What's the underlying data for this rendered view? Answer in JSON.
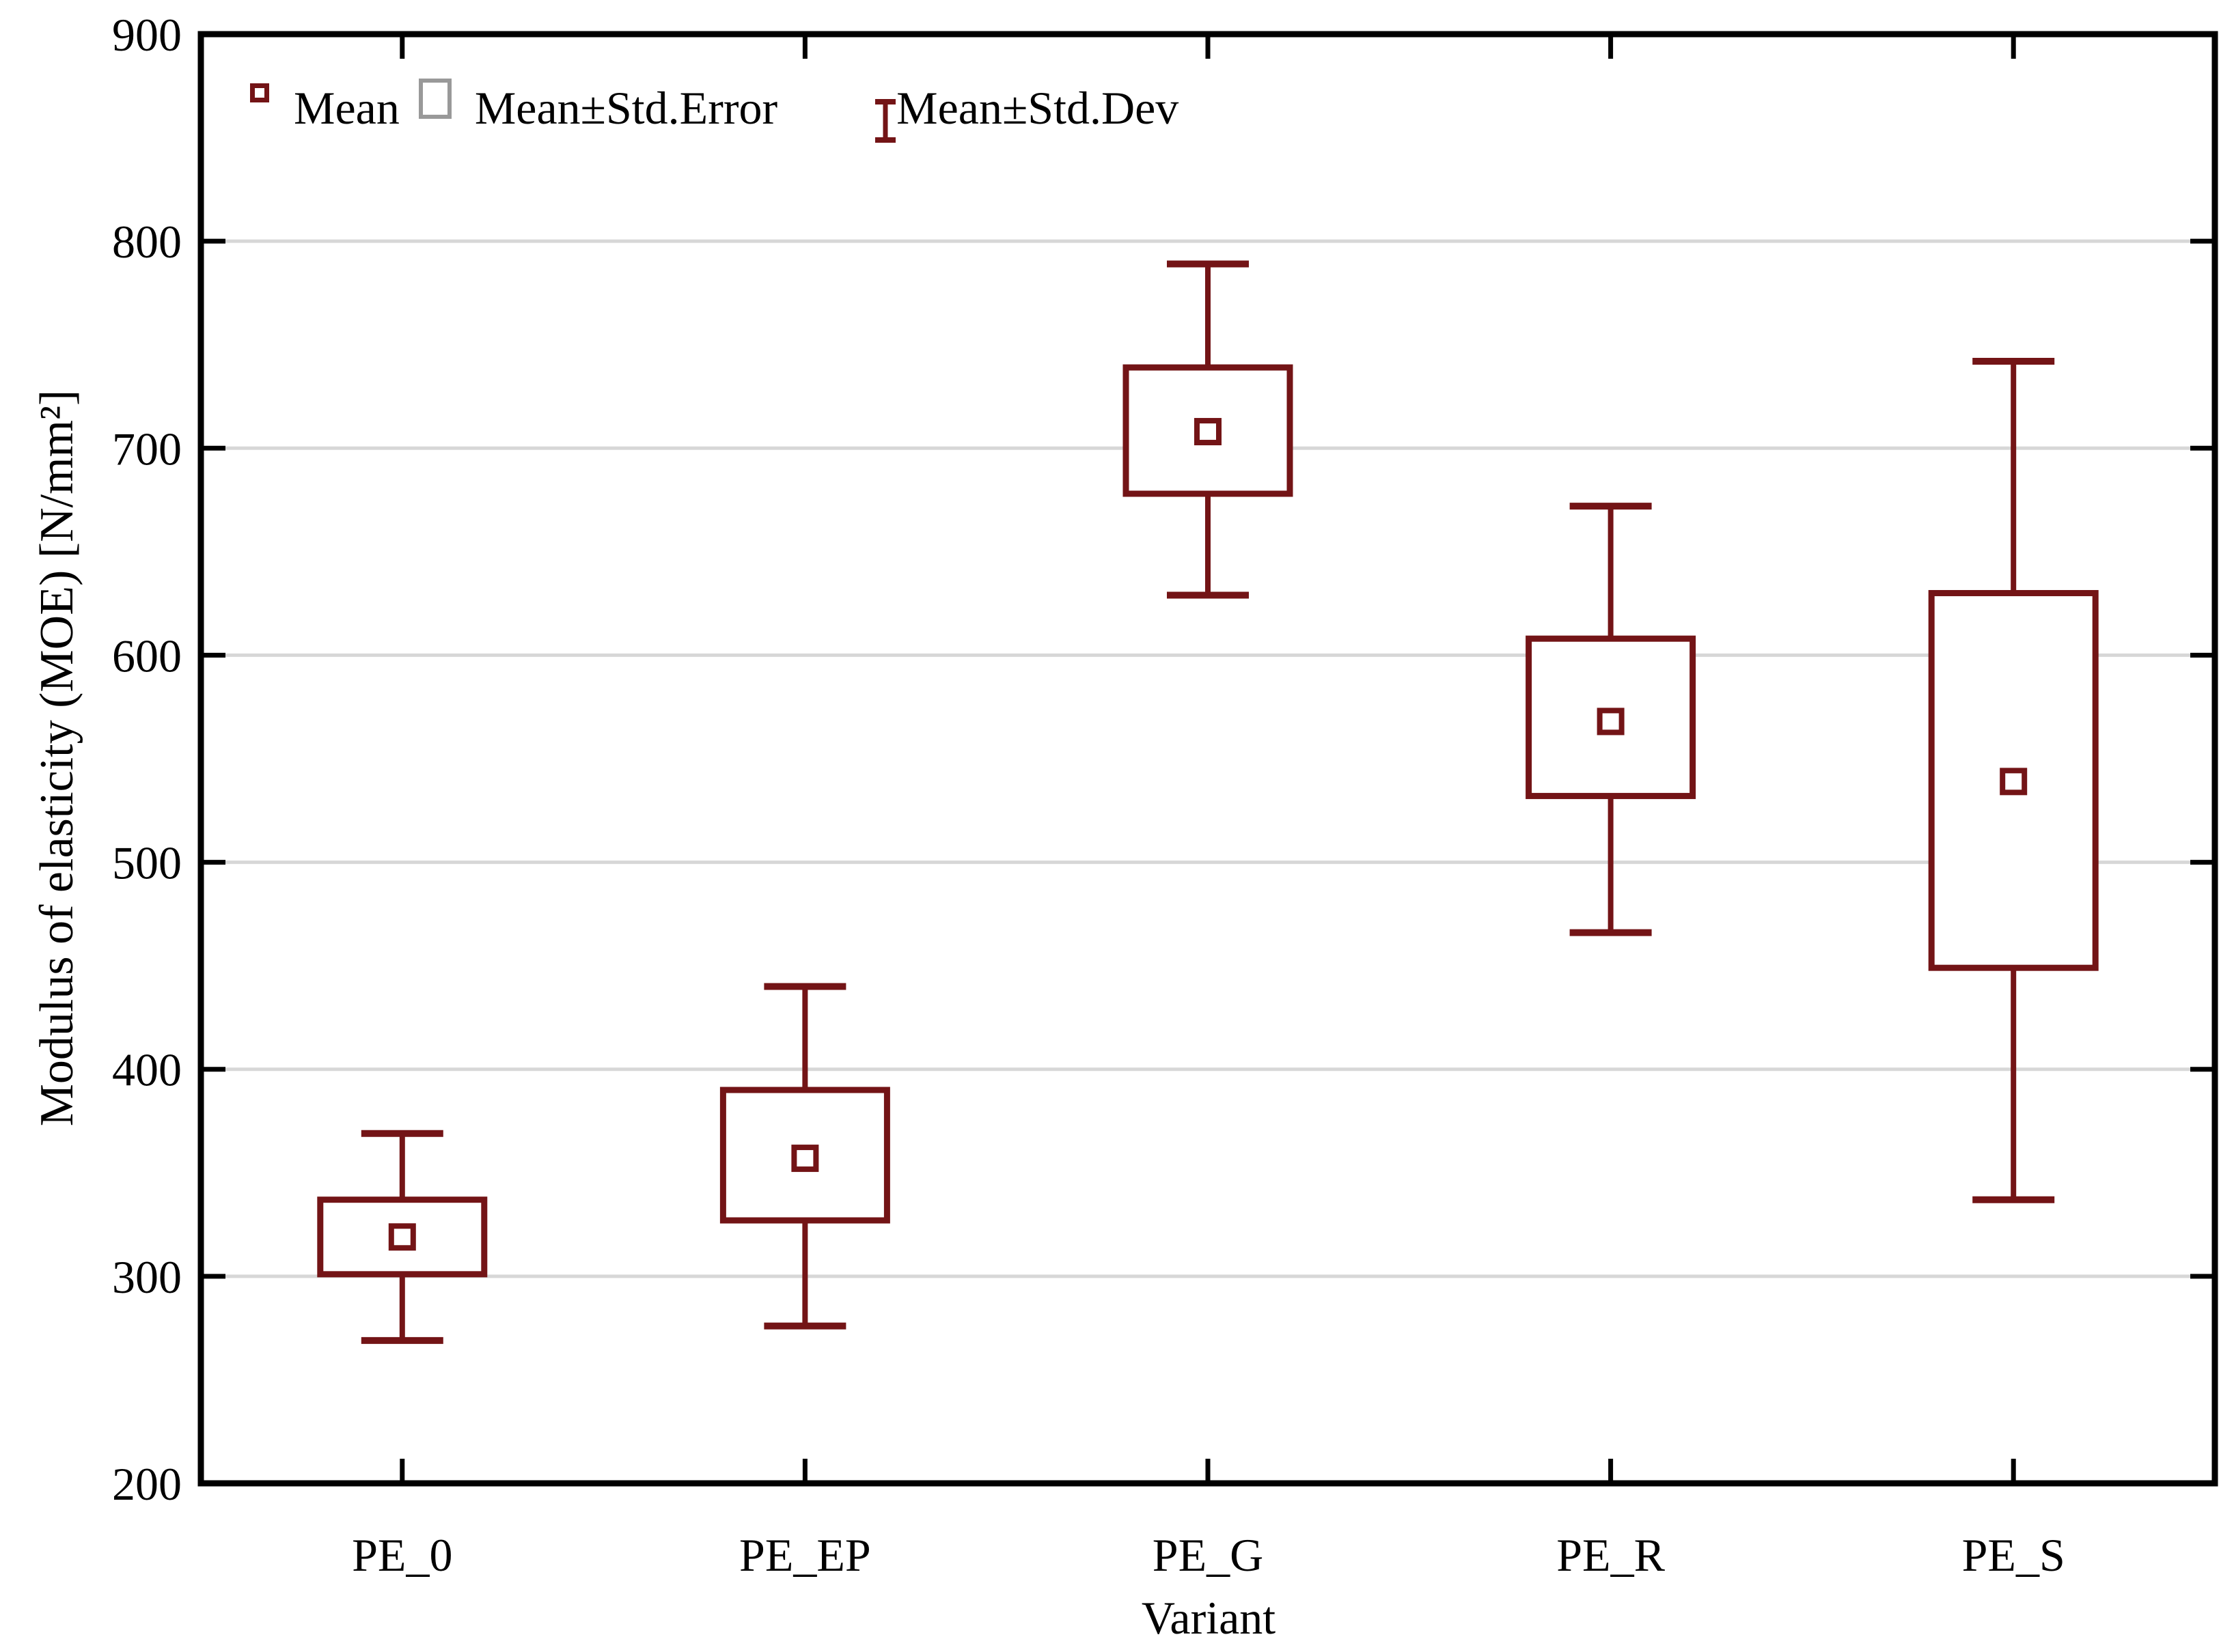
{
  "chart_data": {
    "type": "box",
    "xlabel": "Variant",
    "ylabel": "Modulus of elasticity (MOE) [N/mm²]",
    "ylim": [
      200,
      900
    ],
    "yticks": [
      200,
      300,
      400,
      500,
      600,
      700,
      800,
      900
    ],
    "grid": true,
    "legend_position": "top-left-inside",
    "categories": [
      "PE_0",
      "PE_EP",
      "PE_G",
      "PE_R",
      "PE_S"
    ],
    "series": [
      {
        "category": "PE_0",
        "mean": 319,
        "se_low": 301,
        "se_high": 337,
        "sd_low": 269,
        "sd_high": 369
      },
      {
        "category": "PE_EP",
        "mean": 357,
        "se_low": 327,
        "se_high": 390,
        "sd_low": 276,
        "sd_high": 440
      },
      {
        "category": "PE_G",
        "mean": 708,
        "se_low": 678,
        "se_high": 739,
        "sd_low": 629,
        "sd_high": 789
      },
      {
        "category": "PE_R",
        "mean": 568,
        "se_low": 532,
        "se_high": 608,
        "sd_low": 466,
        "sd_high": 672
      },
      {
        "category": "PE_S",
        "mean": 539,
        "se_low": 449,
        "se_high": 630,
        "sd_low": 337,
        "sd_high": 742
      }
    ],
    "legend": [
      {
        "label": "Mean",
        "marker": "mean-square"
      },
      {
        "label": "Mean±Std.Error",
        "marker": "se-box"
      },
      {
        "label": "Mean±Std.Dev",
        "marker": "sd-whisker"
      }
    ],
    "colors": {
      "series": "#731416",
      "se_legend_box": "#999999",
      "grid": "#d7d7d7",
      "frame": "#000000",
      "text": "#000000",
      "fill": "#ffffff"
    }
  }
}
